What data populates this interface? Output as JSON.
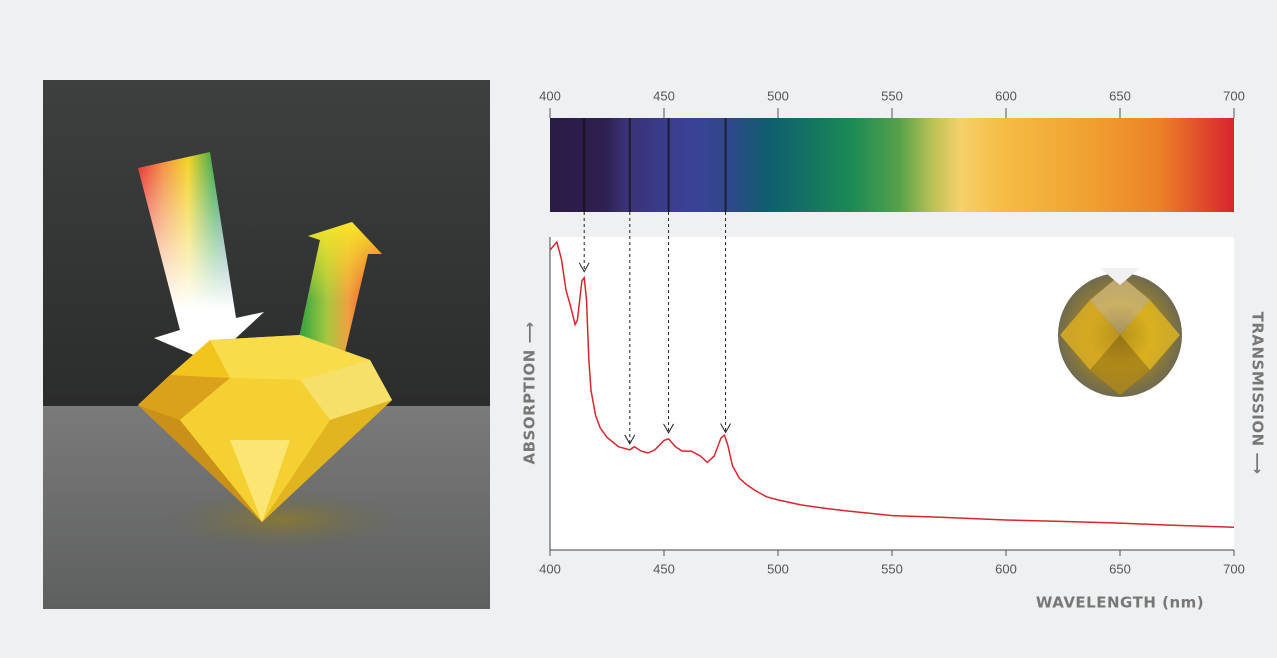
{
  "chart_data": {
    "type": "line",
    "x_label": "WAVELENGTH (nm)",
    "y_label": "ABSORPTION ⟶",
    "y2_label": "TRANSMISSION ⟶",
    "xlim": [
      400,
      700
    ],
    "ylim": [
      0,
      100
    ],
    "xticks": [
      400,
      450,
      500,
      550,
      600,
      650,
      700
    ],
    "color": "#d9262c",
    "x": [
      400,
      403,
      405,
      407,
      409,
      411,
      412,
      414,
      415,
      416,
      417,
      418,
      420,
      422,
      425,
      430,
      435,
      437,
      440,
      443,
      446,
      450,
      452,
      455,
      458,
      462,
      466,
      469,
      472,
      475,
      476.5,
      478,
      480,
      483,
      486,
      490,
      495,
      500,
      510,
      520,
      530,
      550,
      570,
      600,
      630,
      650,
      670,
      700
    ],
    "values": [
      95.8,
      98.4,
      93,
      83,
      78,
      72,
      73.5,
      86,
      87,
      80,
      61,
      51,
      43,
      39,
      36,
      33,
      32,
      33,
      31.6,
      31,
      32,
      35,
      35.5,
      33,
      31.6,
      31.6,
      30,
      28,
      30,
      35.8,
      36.7,
      33.5,
      27,
      23,
      21,
      19,
      17,
      16,
      14.4,
      13.4,
      12.5,
      11,
      10.5,
      9.6,
      9,
      8.6,
      8,
      7.3
    ],
    "absorption_lines": [
      415,
      435,
      452,
      477
    ]
  }
}
